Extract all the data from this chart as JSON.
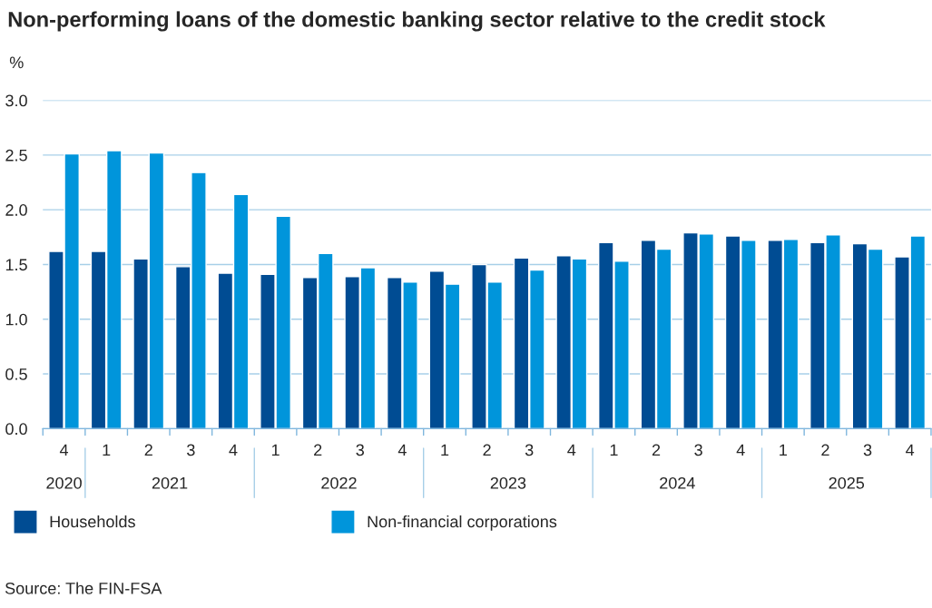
{
  "chart_data": {
    "type": "bar",
    "title": "Non-performing loans of the domestic banking sector relative to the credit stock",
    "ylabel": "%",
    "categories": [
      "4",
      "1",
      "2",
      "3",
      "4",
      "1",
      "2",
      "3",
      "4",
      "1",
      "2",
      "3",
      "4",
      "1",
      "2",
      "3",
      "4",
      "1",
      "2",
      "3",
      "4"
    ],
    "series": [
      {
        "name": "Households",
        "color": "#004c93",
        "values": [
          1.62,
          1.62,
          1.55,
          1.48,
          1.42,
          1.41,
          1.38,
          1.39,
          1.38,
          1.44,
          1.5,
          1.56,
          1.58,
          1.7,
          1.72,
          1.79,
          1.76,
          1.72,
          1.7,
          1.69,
          1.57
        ]
      },
      {
        "name": "Non-financial corporations",
        "color": "#0095db",
        "values": [
          2.51,
          2.54,
          2.52,
          2.34,
          2.14,
          1.94,
          1.6,
          1.47,
          1.34,
          1.32,
          1.34,
          1.45,
          1.55,
          1.53,
          1.64,
          1.78,
          1.72,
          1.73,
          1.77,
          1.64,
          1.76
        ]
      }
    ],
    "ylim": [
      0,
      3.0
    ],
    "yticks": [
      {
        "value": 0,
        "label": "0.0"
      },
      {
        "value": 0.5,
        "label": "0.5"
      },
      {
        "value": 1.0,
        "label": "1.0"
      },
      {
        "value": 1.5,
        "label": "1.5"
      },
      {
        "value": 2.0,
        "label": "2.0"
      },
      {
        "value": 2.5,
        "label": "2.5"
      },
      {
        "value": 3.0,
        "label": "3.0"
      }
    ],
    "grid": "y",
    "legend": "bottom",
    "annotations": [
      "2020",
      "2021",
      "2022",
      "2023",
      "2024",
      "2025",
      "Source: The FIN-FSA"
    ]
  }
}
